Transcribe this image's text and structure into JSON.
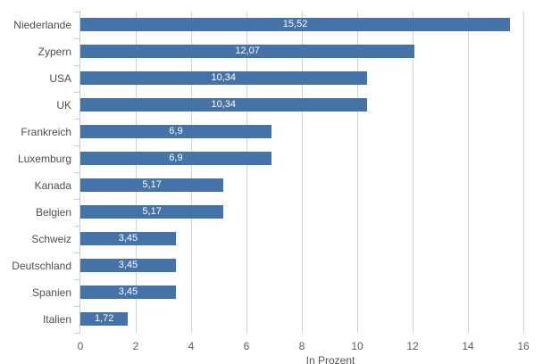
{
  "chart_data": {
    "type": "bar",
    "orientation": "horizontal",
    "title": "",
    "xlabel": "In Prozent",
    "ylabel": "",
    "categories": [
      "Niederlande",
      "Zypern",
      "USA",
      "UK",
      "Frankreich",
      "Luxemburg",
      "Kanada",
      "Belgien",
      "Schweiz",
      "Deutschland",
      "Spanien",
      "Italien"
    ],
    "values": [
      15.52,
      12.07,
      10.34,
      10.34,
      6.9,
      6.9,
      5.17,
      5.17,
      3.45,
      3.45,
      3.45,
      1.72
    ],
    "value_labels": [
      "15,52",
      "12,07",
      "10,34",
      "10,34",
      "6,9",
      "6,9",
      "5,17",
      "5,17",
      "3,45",
      "3,45",
      "3,45",
      "1,72"
    ],
    "xlim": [
      0,
      16
    ],
    "x_ticks": [
      0,
      2,
      4,
      6,
      8,
      10,
      12,
      14,
      16
    ],
    "grid": true,
    "legend": "none",
    "bar_color": "#4572a7",
    "data_label_color": "#ffffff",
    "gridline_color": "#d2d2d2",
    "axis_line_color": "#c0d0e0",
    "category_label_color": "#4f4f4f",
    "tick_label_color": "#5e5e5e",
    "axis_title_color": "#555555"
  }
}
